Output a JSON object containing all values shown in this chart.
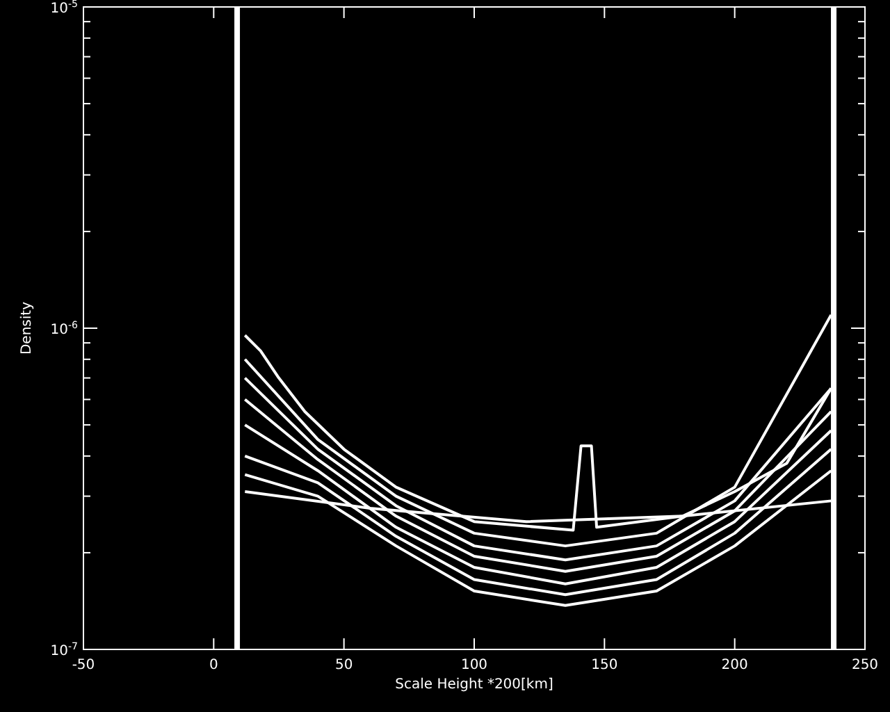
{
  "chart_data": {
    "type": "line",
    "xlabel": "Scale Height *200[km]",
    "ylabel": "Density",
    "log": "y",
    "xlim": [
      -50,
      250
    ],
    "ylim": [
      1e-07,
      1e-05
    ],
    "xticks": [
      -50,
      0,
      50,
      100,
      150,
      200,
      250
    ],
    "yticks": [
      {
        "value": 1e-07,
        "label": "10$^{-7}$"
      },
      {
        "value": 2e-07,
        "label": null
      },
      {
        "value": 3e-07,
        "label": null
      },
      {
        "value": 4e-07,
        "label": null
      },
      {
        "value": 5e-07,
        "label": null
      },
      {
        "value": 6e-07,
        "label": null
      },
      {
        "value": 7e-07,
        "label": null
      },
      {
        "value": 8e-07,
        "label": null
      },
      {
        "value": 9e-07,
        "label": null
      },
      {
        "value": 1e-06,
        "label": "10$^{-6}$"
      },
      {
        "value": 2e-06,
        "label": null
      },
      {
        "value": 3e-06,
        "label": null
      },
      {
        "value": 4e-06,
        "label": null
      },
      {
        "value": 5e-06,
        "label": null
      },
      {
        "value": 6e-06,
        "label": null
      },
      {
        "value": 7e-06,
        "label": null
      },
      {
        "value": 8e-06,
        "label": null
      },
      {
        "value": 9e-06,
        "label": null
      },
      {
        "value": 1e-05,
        "label": "10$^{-5}$"
      }
    ],
    "grid": false,
    "marker": "none",
    "line_style": "solid",
    "ref_lines": [
      {
        "axis": "x",
        "value": 9,
        "color": "#ffffff"
      },
      {
        "axis": "x",
        "value": 238,
        "color": "#ffffff"
      }
    ],
    "series": [
      {
        "color": "#ffffff",
        "x": [
          12,
          18,
          25,
          35,
          50,
          70,
          100,
          138,
          141,
          145,
          147,
          180,
          200,
          220,
          237
        ],
        "values": [
          9.5e-07,
          8.5e-07,
          7e-07,
          5.5e-07,
          4.2e-07,
          3.2e-07,
          2.5e-07,
          2.35e-07,
          4.3e-07,
          4.3e-07,
          2.4e-07,
          2.6e-07,
          3.1e-07,
          3.8e-07,
          6.5e-07
        ]
      },
      {
        "color": "#ffffff",
        "x": [
          12,
          60,
          120,
          180,
          237
        ],
        "values": [
          3.1e-07,
          2.75e-07,
          2.5e-07,
          2.6e-07,
          2.9e-07
        ]
      },
      {
        "color": "#ffffff",
        "x": [
          12,
          40,
          70,
          100,
          135,
          170,
          200,
          237
        ],
        "values": [
          8e-07,
          4.5e-07,
          3e-07,
          2.3e-07,
          2.1e-07,
          2.3e-07,
          3.2e-07,
          1.1e-06
        ]
      },
      {
        "color": "#ffffff",
        "x": [
          12,
          40,
          70,
          100,
          135,
          170,
          200,
          237
        ],
        "values": [
          7e-07,
          4.2e-07,
          2.8e-07,
          2.1e-07,
          1.9e-07,
          2.1e-07,
          2.9e-07,
          6.5e-07
        ]
      },
      {
        "color": "#ffffff",
        "x": [
          12,
          40,
          70,
          100,
          135,
          170,
          200,
          237
        ],
        "values": [
          6e-07,
          3.9e-07,
          2.6e-07,
          1.95e-07,
          1.75e-07,
          1.95e-07,
          2.7e-07,
          5.5e-07
        ]
      },
      {
        "color": "#ffffff",
        "x": [
          12,
          40,
          70,
          100,
          135,
          170,
          200,
          237
        ],
        "values": [
          5e-07,
          3.6e-07,
          2.4e-07,
          1.8e-07,
          1.6e-07,
          1.8e-07,
          2.5e-07,
          4.8e-07
        ]
      },
      {
        "color": "#ffffff",
        "x": [
          12,
          40,
          70,
          100,
          135,
          170,
          200,
          237
        ],
        "values": [
          4e-07,
          3.3e-07,
          2.25e-07,
          1.65e-07,
          1.48e-07,
          1.65e-07,
          2.3e-07,
          4.2e-07
        ]
      },
      {
        "color": "#ffffff",
        "x": [
          12,
          40,
          70,
          100,
          135,
          170,
          200,
          237
        ],
        "values": [
          3.5e-07,
          3e-07,
          2.1e-07,
          1.52e-07,
          1.37e-07,
          1.52e-07,
          2.1e-07,
          3.6e-07
        ]
      }
    ]
  }
}
